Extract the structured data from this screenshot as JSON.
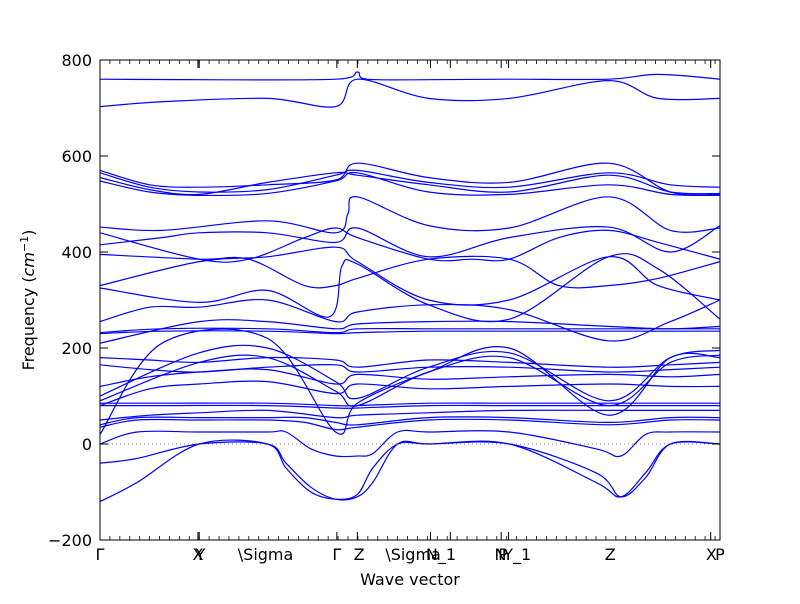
{
  "chart_data": {
    "type": "line",
    "xlabel": "Wave vector",
    "ylabel_prefix": "Frequency (",
    "ylabel_unit": "cm",
    "ylabel_exp": "−1",
    "ylabel_suffix": ")",
    "xlim": [
      0,
      1
    ],
    "ylim": [
      -200,
      800
    ],
    "yticks": [
      -200,
      0,
      200,
      400,
      600,
      800
    ],
    "zero_line": true,
    "grid": false,
    "line_color": "#0000ff",
    "zero_line_color": "#555555",
    "xtick_positions": [
      0,
      0.158,
      0.16,
      0.382,
      0.415,
      0.533,
      0.565,
      0.647,
      0.659,
      0.985,
      1.0
    ],
    "xtick_labels": [
      {
        "text": "Γ",
        "pos": 0.0
      },
      {
        "text": "X",
        "pos": 0.158
      },
      {
        "text": "Y",
        "pos": 0.162
      },
      {
        "text": "\\Sigma",
        "pos": 0.267
      },
      {
        "text": "Γ",
        "pos": 0.382
      },
      {
        "text": "Z",
        "pos": 0.418
      },
      {
        "text": "\\Sigma",
        "pos": 0.505
      },
      {
        "text": "N_1",
        "pos": 0.55
      },
      {
        "text": "N",
        "pos": 0.646
      },
      {
        "text": "P",
        "pos": 0.65
      },
      {
        "text": "Y_1",
        "pos": 0.673
      },
      {
        "text": "Z",
        "pos": 0.823
      },
      {
        "text": "X",
        "pos": 0.986
      },
      {
        "text": "P",
        "pos": 1.0
      }
    ],
    "minor_tick_spacing": 0.016,
    "bands": [
      {
        "x": [
          0,
          0.16,
          0.38,
          0.415,
          0.43,
          0.53,
          0.66,
          0.82,
          0.9,
          1.0
        ],
        "y": [
          760,
          759,
          760,
          775,
          760,
          759,
          760,
          760,
          770,
          760
        ]
      },
      {
        "x": [
          0,
          0.1,
          0.27,
          0.38,
          0.415,
          0.53,
          0.66,
          0.82,
          0.9,
          1.0
        ],
        "y": [
          703,
          713,
          720,
          703,
          760,
          720,
          720,
          757,
          720,
          720
        ]
      },
      {
        "x": [
          0,
          0.08,
          0.16,
          0.27,
          0.38,
          0.415,
          0.53,
          0.66,
          0.82,
          0.92,
          1.0
        ],
        "y": [
          570,
          540,
          535,
          540,
          550,
          585,
          555,
          545,
          585,
          525,
          520
        ]
      },
      {
        "x": [
          0,
          0.08,
          0.16,
          0.27,
          0.38,
          0.415,
          0.53,
          0.66,
          0.82,
          0.92,
          1.0
        ],
        "y": [
          565,
          535,
          525,
          530,
          560,
          570,
          545,
          535,
          565,
          540,
          535
        ]
      },
      {
        "x": [
          0,
          0.08,
          0.16,
          0.27,
          0.38,
          0.415,
          0.53,
          0.66,
          0.82,
          0.92,
          1.0
        ],
        "y": [
          555,
          530,
          520,
          545,
          565,
          560,
          540,
          525,
          560,
          525,
          522
        ]
      },
      {
        "x": [
          0,
          0.08,
          0.16,
          0.27,
          0.38,
          0.415,
          0.53,
          0.66,
          0.82,
          0.92,
          1.0
        ],
        "y": [
          548,
          525,
          518,
          522,
          548,
          565,
          525,
          520,
          540,
          520,
          518
        ]
      },
      {
        "x": [
          0,
          0.1,
          0.27,
          0.38,
          0.4,
          0.415,
          0.53,
          0.66,
          0.82,
          0.92,
          1.0
        ],
        "y": [
          452,
          445,
          465,
          440,
          480,
          515,
          455,
          450,
          515,
          445,
          450
        ]
      },
      {
        "x": [
          0,
          0.1,
          0.16,
          0.27,
          0.38,
          0.415,
          0.53,
          0.66,
          0.82,
          0.92,
          1.0
        ],
        "y": [
          415,
          430,
          440,
          440,
          420,
          450,
          390,
          430,
          452,
          400,
          455
        ]
      },
      {
        "x": [
          0,
          0.16,
          0.24,
          0.33,
          0.38,
          0.415,
          0.53,
          0.6,
          0.66,
          0.74,
          0.82,
          0.9,
          1.0
        ],
        "y": [
          440,
          385,
          385,
          430,
          450,
          430,
          385,
          385,
          385,
          430,
          445,
          420,
          385
        ]
      },
      {
        "x": [
          0,
          0.16,
          0.24,
          0.33,
          0.38,
          0.415,
          0.53,
          0.66,
          0.74,
          0.82,
          0.9,
          1.0
        ],
        "y": [
          395,
          385,
          385,
          330,
          330,
          345,
          385,
          385,
          330,
          330,
          345,
          380
        ]
      },
      {
        "x": [
          0,
          0.16,
          0.27,
          0.38,
          0.415,
          0.53,
          0.66,
          0.82,
          0.9,
          1.0
        ],
        "y": [
          330,
          380,
          390,
          410,
          380,
          300,
          300,
          390,
          330,
          300
        ]
      },
      {
        "x": [
          0,
          0.16,
          0.27,
          0.37,
          0.39,
          0.415,
          0.53,
          0.66,
          0.82,
          0.9,
          1.0
        ],
        "y": [
          325,
          295,
          320,
          265,
          370,
          375,
          290,
          260,
          390,
          365,
          260
        ]
      },
      {
        "x": [
          0,
          0.08,
          0.16,
          0.27,
          0.38,
          0.415,
          0.53,
          0.66,
          0.82,
          0.92,
          1.0
        ],
        "y": [
          255,
          285,
          285,
          300,
          255,
          275,
          290,
          280,
          215,
          255,
          300
        ]
      },
      {
        "x": [
          0,
          0.1,
          0.27,
          0.38,
          0.415,
          0.53,
          0.66,
          0.82,
          0.92,
          1.0
        ],
        "y": [
          232,
          240,
          240,
          232,
          240,
          240,
          240,
          240,
          240,
          240
        ]
      },
      {
        "x": [
          0,
          0.1,
          0.27,
          0.38,
          0.415,
          0.53,
          0.66,
          0.82,
          0.92,
          1.0
        ],
        "y": [
          230,
          235,
          235,
          230,
          232,
          235,
          235,
          235,
          235,
          235
        ]
      },
      {
        "x": [
          0,
          0.16,
          0.27,
          0.38,
          0.415,
          0.53,
          0.66,
          0.82,
          0.92,
          1.0
        ],
        "y": [
          210,
          255,
          255,
          240,
          250,
          255,
          255,
          245,
          240,
          245
        ]
      },
      {
        "x": [
          0,
          0.08,
          0.16,
          0.27,
          0.38,
          0.415,
          0.53,
          0.66,
          0.82,
          0.92,
          1.0
        ],
        "y": [
          180,
          175,
          170,
          180,
          175,
          160,
          175,
          170,
          160,
          165,
          170
        ]
      },
      {
        "x": [
          0,
          0.08,
          0.16,
          0.27,
          0.38,
          0.415,
          0.53,
          0.66,
          0.82,
          0.92,
          1.0
        ],
        "y": [
          165,
          155,
          150,
          160,
          165,
          150,
          160,
          160,
          150,
          155,
          160
        ]
      },
      {
        "x": [
          0,
          0.16,
          0.27,
          0.38,
          0.415,
          0.53,
          0.66,
          0.82,
          0.92,
          1.0
        ],
        "y": [
          100,
          190,
          200,
          130,
          95,
          160,
          190,
          90,
          180,
          195
        ]
      },
      {
        "x": [
          0,
          0.16,
          0.27,
          0.38,
          0.415,
          0.53,
          0.66,
          0.82,
          0.92,
          1.0
        ],
        "y": [
          90,
          170,
          180,
          110,
          80,
          150,
          180,
          80,
          170,
          185
        ]
      },
      {
        "x": [
          0,
          0.08,
          0.16,
          0.27,
          0.38,
          0.415,
          0.53,
          0.66,
          0.82,
          0.92,
          1.0
        ],
        "y": [
          120,
          140,
          150,
          155,
          125,
          145,
          135,
          140,
          145,
          140,
          145
        ]
      },
      {
        "x": [
          0,
          0.08,
          0.16,
          0.27,
          0.38,
          0.415,
          0.53,
          0.66,
          0.82,
          0.92,
          1.0
        ],
        "y": [
          80,
          115,
          125,
          130,
          105,
          125,
          115,
          120,
          125,
          120,
          120
        ]
      },
      {
        "x": [
          0,
          0.1,
          0.27,
          0.38,
          0.415,
          0.53,
          0.66,
          0.82,
          0.92,
          1.0
        ],
        "y": [
          20,
          210,
          220,
          25,
          85,
          150,
          200,
          60,
          180,
          180
        ]
      },
      {
        "x": [
          0,
          0.1,
          0.27,
          0.38,
          0.415,
          0.53,
          0.66,
          0.82,
          0.92,
          1.0
        ],
        "y": [
          85,
          85,
          85,
          80,
          80,
          85,
          85,
          85,
          85,
          85
        ]
      },
      {
        "x": [
          0,
          0.1,
          0.27,
          0.38,
          0.415,
          0.53,
          0.66,
          0.82,
          0.92,
          1.0
        ],
        "y": [
          80,
          80,
          80,
          75,
          75,
          80,
          80,
          80,
          80,
          80
        ]
      },
      {
        "x": [
          0,
          0.08,
          0.16,
          0.27,
          0.38,
          0.415,
          0.53,
          0.66,
          0.82,
          0.92,
          1.0
        ],
        "y": [
          50,
          60,
          65,
          70,
          55,
          60,
          65,
          70,
          70,
          70,
          70
        ]
      },
      {
        "x": [
          0,
          0.06,
          0.16,
          0.27,
          0.33,
          0.38,
          0.415,
          0.53,
          0.66,
          0.82,
          0.92,
          1.0
        ],
        "y": [
          40,
          55,
          55,
          55,
          55,
          45,
          40,
          55,
          55,
          45,
          55,
          55
        ]
      },
      {
        "x": [
          0,
          0.06,
          0.16,
          0.27,
          0.33,
          0.38,
          0.415,
          0.53,
          0.66,
          0.82,
          0.92,
          1.0
        ],
        "y": [
          35,
          50,
          50,
          50,
          45,
          30,
          35,
          50,
          50,
          40,
          50,
          50
        ]
      },
      {
        "x": [
          0,
          0.06,
          0.16,
          0.27,
          0.3,
          0.34,
          0.38,
          0.415,
          0.44,
          0.48,
          0.53,
          0.66,
          0.8,
          0.84,
          0.88,
          0.92,
          1.0
        ],
        "y": [
          0,
          25,
          25,
          25,
          25,
          -10,
          -25,
          -25,
          -20,
          25,
          25,
          25,
          -10,
          -25,
          20,
          25,
          25
        ]
      },
      {
        "x": [
          0,
          0.06,
          0.16,
          0.27,
          0.3,
          0.34,
          0.38,
          0.415,
          0.44,
          0.48,
          0.53,
          0.66,
          0.8,
          0.84,
          0.88,
          0.92,
          1.0
        ],
        "y": [
          -40,
          -30,
          0,
          0,
          -40,
          -90,
          -115,
          -110,
          -80,
          0,
          0,
          0,
          -60,
          -110,
          -70,
          0,
          0
        ]
      },
      {
        "x": [
          0,
          0.06,
          0.16,
          0.27,
          0.3,
          0.34,
          0.38,
          0.415,
          0.44,
          0.48,
          0.53,
          0.66,
          0.8,
          0.84,
          0.88,
          0.92,
          1.0
        ],
        "y": [
          -120,
          -80,
          0,
          0,
          -50,
          -100,
          -115,
          -105,
          -50,
          0,
          0,
          0,
          -80,
          -110,
          -60,
          0,
          0
        ]
      }
    ]
  }
}
